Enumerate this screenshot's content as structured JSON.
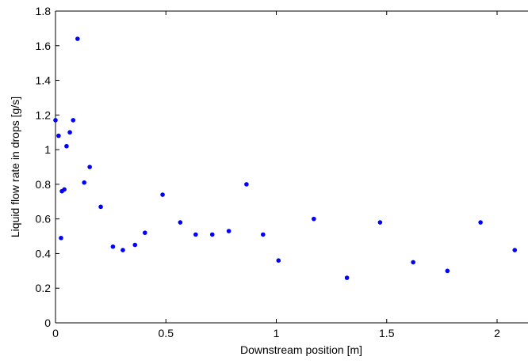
{
  "chart_data": {
    "type": "scatter",
    "x_label": "Downstream position [m]",
    "y_label": "Liquid flow rate in drops [g/s]",
    "color": "#0000ff",
    "x": [
      0,
      0.014,
      0.1,
      0.08,
      0.065,
      0.05,
      0.029,
      0.04,
      0.025,
      0.13,
      0.155,
      0.205,
      0.26,
      0.305,
      0.36,
      0.405,
      0.485,
      0.565,
      0.635,
      0.71,
      0.785,
      0.865,
      0.94,
      1.01,
      1.17,
      1.32,
      1.47,
      1.62,
      1.775,
      1.925,
      2.08
    ],
    "values": [
      1.17,
      1.08,
      1.64,
      1.17,
      1.1,
      1.02,
      0.76,
      0.77,
      0.49,
      0.81,
      0.9,
      0.67,
      0.44,
      0.42,
      0.45,
      0.52,
      0.74,
      0.58,
      0.51,
      0.51,
      0.53,
      0.8,
      0.51,
      0.36,
      0.6,
      0.26,
      0.58,
      0.35,
      0.3,
      0.58,
      0.42
    ],
    "xlim": [
      0,
      2.14
    ],
    "xticks": [
      0,
      0.5,
      1,
      1.5,
      2
    ],
    "ylim": [
      0,
      1.8
    ],
    "yticks": [
      0,
      0.2,
      0.4,
      0.6,
      0.8,
      1,
      1.2,
      1.4,
      1.6,
      1.8
    ]
  }
}
